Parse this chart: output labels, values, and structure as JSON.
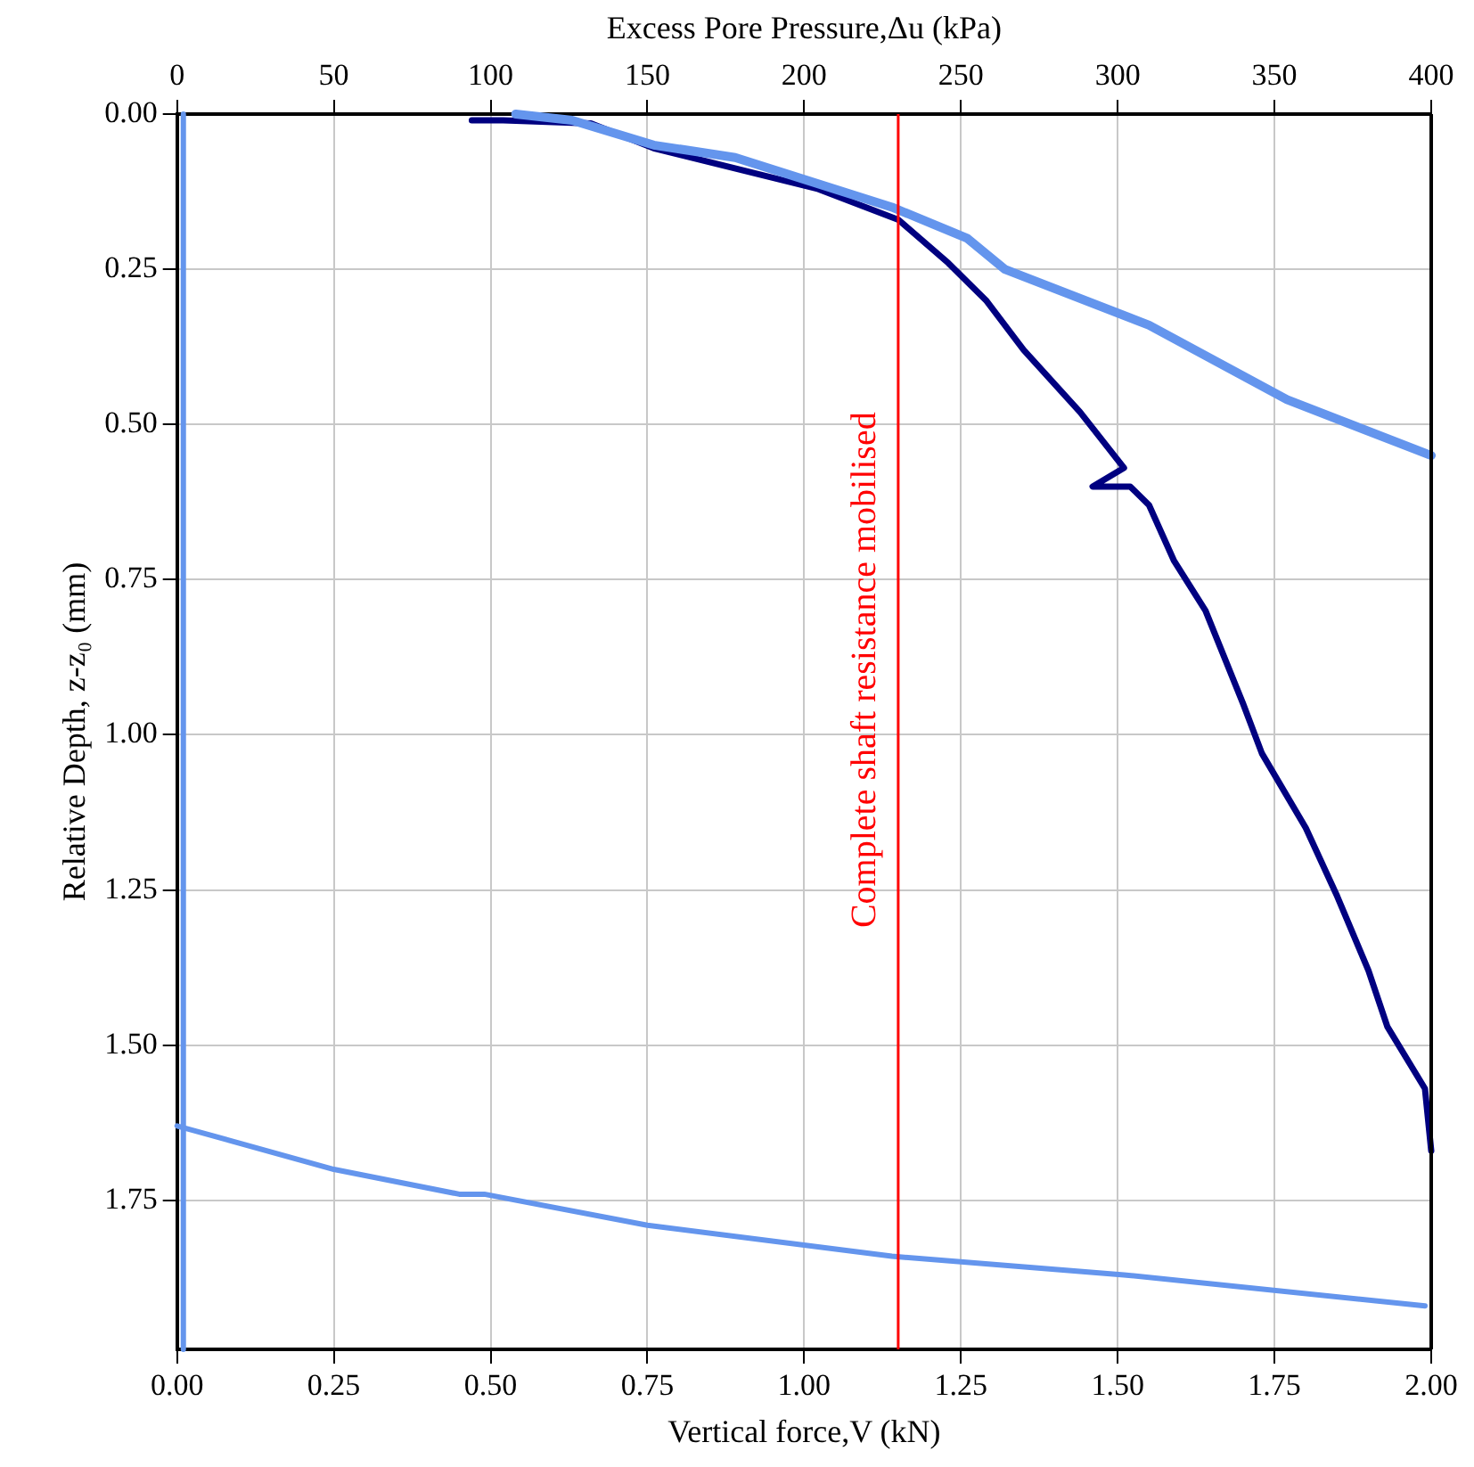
{
  "chart_data": {
    "type": "line",
    "xlabel": "Vertical force,V (kN)",
    "ylabel": "Relative Depth, z-z₀ (mm)",
    "x2label": "Excess Pore Pressure,Δu (kPa)",
    "series": [
      {
        "color": "#6495ed",
        "x": [
          0.54,
          0.63,
          0.76,
          0.89,
          1.14,
          1.26,
          1.32,
          1.55,
          1.77,
          2.0
        ],
        "values": [
          0,
          0.01,
          0.05,
          0.07,
          0.15,
          0.2,
          0.25,
          0.34,
          0.46,
          0.55
        ]
      },
      {
        "color": "#000080",
        "x": [
          0.47,
          0.52,
          0.66,
          0.76,
          1.02,
          1.15,
          1.23,
          1.29,
          1.35,
          1.44,
          1.51,
          1.46,
          1.52,
          1.55,
          1.59,
          1.64,
          1.7,
          1.73,
          1.8,
          1.85,
          1.9,
          1.93,
          1.99,
          2.0
        ],
        "values": [
          0.01,
          0.01,
          0.015,
          0.055,
          0.12,
          0.17,
          0.24,
          0.3,
          0.38,
          0.48,
          0.57,
          0.6,
          0.6,
          0.63,
          0.72,
          0.8,
          0.95,
          1.03,
          1.15,
          1.26,
          1.38,
          1.47,
          1.57,
          1.67
        ]
      },
      {
        "color": "#6495ed",
        "x": [
          0,
          0.25,
          0.45,
          0.49,
          0.75,
          1.14,
          1.51,
          1.99
        ],
        "values": [
          1.63,
          1.7,
          1.74,
          1.74,
          1.79,
          1.84,
          1.87,
          1.92
        ]
      },
      {
        "color": "#6495ed",
        "x": [
          0.01,
          0.01
        ],
        "values": [
          0,
          1.99
        ]
      }
    ],
    "xlim": [
      0,
      2
    ],
    "xticks": [
      {
        "value": 0,
        "label": "0.00"
      },
      {
        "value": 0.25,
        "label": "0.25"
      },
      {
        "value": 0.5,
        "label": "0.50"
      },
      {
        "value": 0.75,
        "label": "0.75"
      },
      {
        "value": 1,
        "label": "1.00"
      },
      {
        "value": 1.25,
        "label": "1.25"
      },
      {
        "value": 1.5,
        "label": "1.50"
      },
      {
        "value": 1.75,
        "label": "1.75"
      },
      {
        "value": 2,
        "label": "2.00"
      }
    ],
    "x2lim": [
      0,
      400
    ],
    "x2ticks": [
      0,
      50,
      100,
      150,
      200,
      250,
      300,
      350,
      400
    ],
    "ylim": [
      1.99,
      0
    ],
    "yticks": [
      {
        "value": 0,
        "label": "0.00"
      },
      {
        "value": 0.25,
        "label": "0.25"
      },
      {
        "value": 0.5,
        "label": "0.50"
      },
      {
        "value": 0.75,
        "label": "0.75"
      },
      {
        "value": 1,
        "label": "1.00"
      },
      {
        "value": 1.25,
        "label": "1.25"
      },
      {
        "value": 1.5,
        "label": "1.50"
      },
      {
        "value": 1.75,
        "label": "1.75"
      }
    ],
    "ref_lines": [
      {
        "axis": "x",
        "value": 1.15,
        "label": "Complete shaft resistance mobilised",
        "color": "#ff0000"
      }
    ],
    "grid": true,
    "legend": false,
    "marker": "none",
    "line_style": "solid"
  }
}
